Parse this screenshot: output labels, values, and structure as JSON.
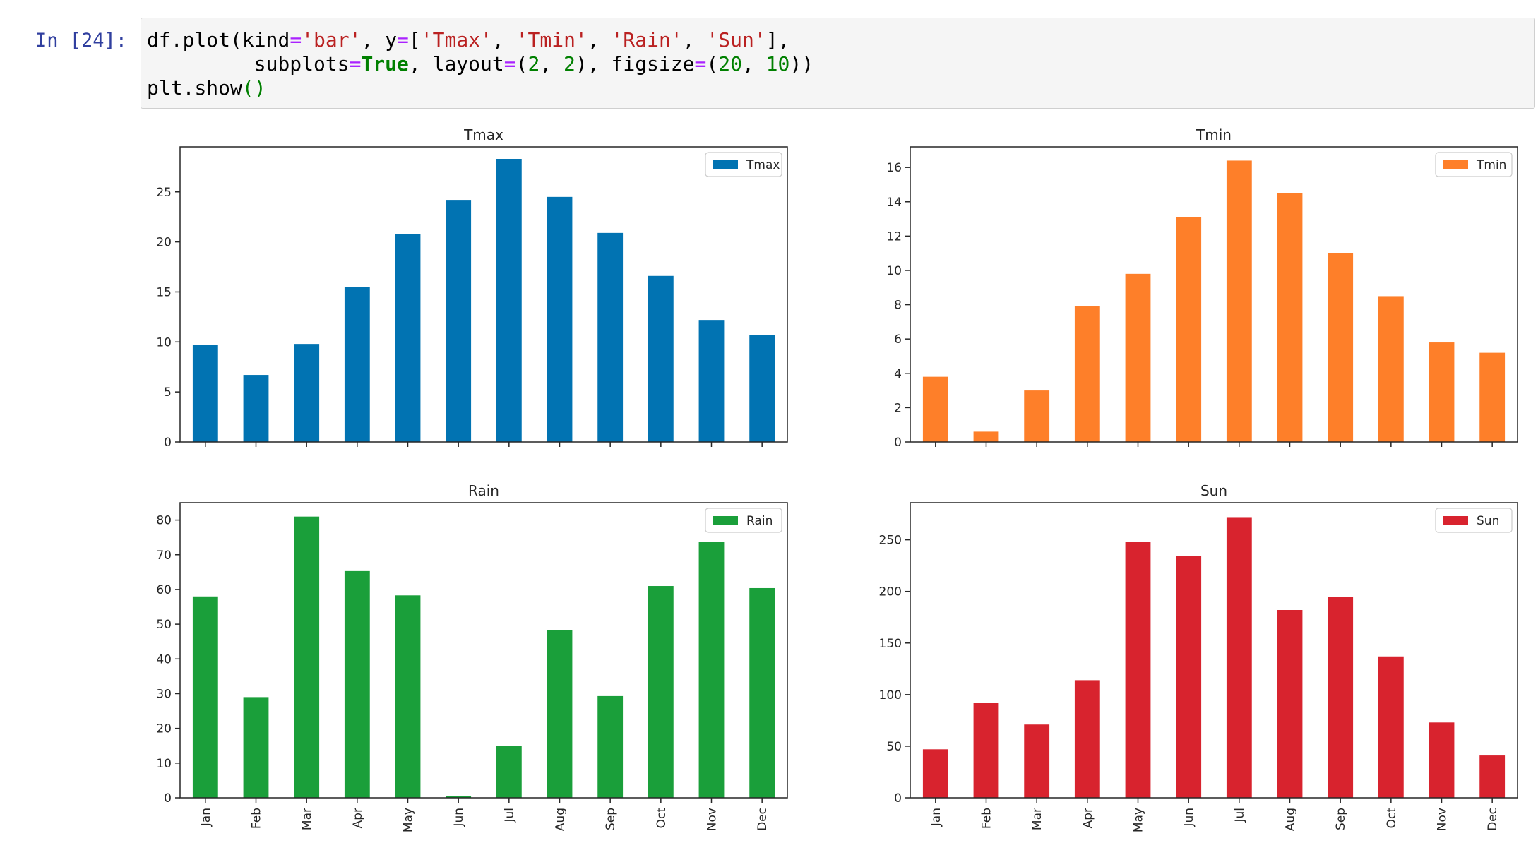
{
  "cell": {
    "prompt": "In [24]:",
    "code_lines": [
      [
        {
          "t": "df",
          "c": "var"
        },
        {
          "t": ".",
          "c": "var"
        },
        {
          "t": "plot",
          "c": "var"
        },
        {
          "t": "(",
          "c": "var"
        },
        {
          "t": "kind",
          "c": "var"
        },
        {
          "t": "=",
          "c": "op"
        },
        {
          "t": "'bar'",
          "c": "str"
        },
        {
          "t": ", ",
          "c": "var"
        },
        {
          "t": "y",
          "c": "var"
        },
        {
          "t": "=",
          "c": "op"
        },
        {
          "t": "[",
          "c": "var"
        },
        {
          "t": "'Tmax'",
          "c": "str"
        },
        {
          "t": ", ",
          "c": "var"
        },
        {
          "t": "'Tmin'",
          "c": "str"
        },
        {
          "t": ", ",
          "c": "var"
        },
        {
          "t": "'Rain'",
          "c": "str"
        },
        {
          "t": ", ",
          "c": "var"
        },
        {
          "t": "'Sun'",
          "c": "str"
        },
        {
          "t": "],",
          "c": "var"
        }
      ],
      [
        {
          "t": "         subplots",
          "c": "var"
        },
        {
          "t": "=",
          "c": "op"
        },
        {
          "t": "True",
          "c": "kw"
        },
        {
          "t": ", ",
          "c": "var"
        },
        {
          "t": "layout",
          "c": "var"
        },
        {
          "t": "=",
          "c": "op"
        },
        {
          "t": "(",
          "c": "var"
        },
        {
          "t": "2",
          "c": "num"
        },
        {
          "t": ", ",
          "c": "var"
        },
        {
          "t": "2",
          "c": "num"
        },
        {
          "t": "), ",
          "c": "var"
        },
        {
          "t": "figsize",
          "c": "var"
        },
        {
          "t": "=",
          "c": "op"
        },
        {
          "t": "(",
          "c": "var"
        },
        {
          "t": "20",
          "c": "num"
        },
        {
          "t": ", ",
          "c": "var"
        },
        {
          "t": "10",
          "c": "num"
        },
        {
          "t": "))",
          "c": "var"
        }
      ],
      [
        {
          "t": "plt",
          "c": "var"
        },
        {
          "t": ".",
          "c": "var"
        },
        {
          "t": "show",
          "c": "var"
        },
        {
          "t": "()",
          "c": "paren"
        }
      ]
    ]
  },
  "chart_data": [
    {
      "type": "bar",
      "title": "Tmax",
      "categories": [
        "Jan",
        "Feb",
        "Mar",
        "Apr",
        "May",
        "Jun",
        "Jul",
        "Aug",
        "Sep",
        "Oct",
        "Nov",
        "Dec"
      ],
      "series": [
        {
          "name": "Tmax",
          "values": [
            9.7,
            6.7,
            9.8,
            15.5,
            20.8,
            24.2,
            28.3,
            24.5,
            20.9,
            16.6,
            12.2,
            10.7
          ],
          "color": "#0173b2"
        }
      ],
      "ylim": [
        0,
        29.5
      ],
      "yticks": [
        0,
        5,
        10,
        15,
        20,
        25
      ],
      "show_xticklabels": false,
      "legend": "top-right"
    },
    {
      "type": "bar",
      "title": "Tmin",
      "categories": [
        "Jan",
        "Feb",
        "Mar",
        "Apr",
        "May",
        "Jun",
        "Jul",
        "Aug",
        "Sep",
        "Oct",
        "Nov",
        "Dec"
      ],
      "series": [
        {
          "name": "Tmin",
          "values": [
            3.8,
            0.6,
            3.0,
            7.9,
            9.8,
            13.1,
            16.4,
            14.5,
            11.0,
            8.5,
            5.8,
            5.2
          ],
          "color": "#fe7f29"
        }
      ],
      "ylim": [
        0,
        17.2
      ],
      "yticks": [
        0,
        2,
        4,
        6,
        8,
        10,
        12,
        14,
        16
      ],
      "show_xticklabels": false,
      "legend": "top-right"
    },
    {
      "type": "bar",
      "title": "Rain",
      "categories": [
        "Jan",
        "Feb",
        "Mar",
        "Apr",
        "May",
        "Jun",
        "Jul",
        "Aug",
        "Sep",
        "Oct",
        "Nov",
        "Dec"
      ],
      "series": [
        {
          "name": "Rain",
          "values": [
            58.0,
            29.0,
            81.0,
            65.3,
            58.3,
            0.5,
            15.0,
            48.3,
            29.3,
            61.0,
            73.8,
            60.4
          ],
          "color": "#1a9f3a"
        }
      ],
      "ylim": [
        0,
        85
      ],
      "yticks": [
        0,
        10,
        20,
        30,
        40,
        50,
        60,
        70,
        80
      ],
      "show_xticklabels": true,
      "legend": "top-right"
    },
    {
      "type": "bar",
      "title": "Sun",
      "categories": [
        "Jan",
        "Feb",
        "Mar",
        "Apr",
        "May",
        "Jun",
        "Jul",
        "Aug",
        "Sep",
        "Oct",
        "Nov",
        "Dec"
      ],
      "series": [
        {
          "name": "Sun",
          "values": [
            47,
            92,
            71,
            114,
            248,
            234,
            272,
            182,
            195,
            137,
            73,
            41
          ],
          "color": "#d8232e"
        }
      ],
      "ylim": [
        0,
        286
      ],
      "yticks": [
        0,
        50,
        100,
        150,
        200,
        250
      ],
      "show_xticklabels": true,
      "legend": "top-right"
    }
  ]
}
